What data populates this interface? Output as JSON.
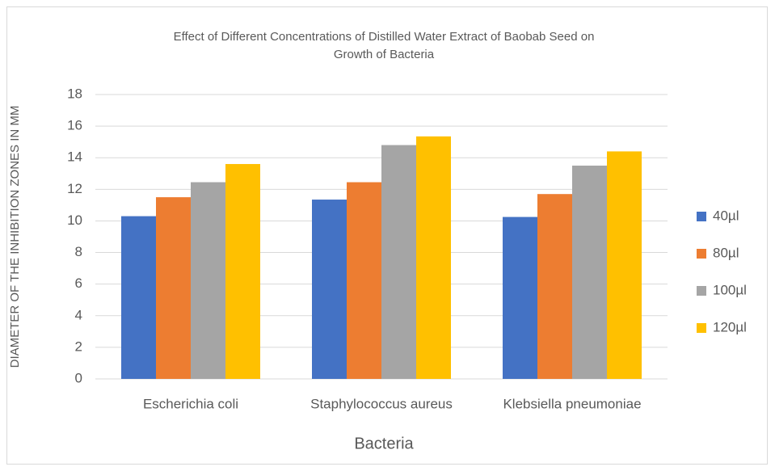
{
  "chart_data": {
    "type": "bar",
    "title": [
      "Effect of Different Concentrations of Distilled Water Extract of  Baobab Seed on",
      "Growth of Bacteria"
    ],
    "x_label": "Bacteria",
    "y_label": "DIAMETER OF THE INHIBITION ZONES IN MM",
    "categories": [
      "Escherichia coli",
      "Staphylococcus aureus",
      "Klebsiella pneumoniae"
    ],
    "series": [
      {
        "name": "40µl",
        "color": "#4472c4",
        "values": [
          10.3,
          11.35,
          10.25
        ]
      },
      {
        "name": "80µl",
        "color": "#ed7d31",
        "values": [
          11.5,
          12.45,
          11.7
        ]
      },
      {
        "name": "100µl",
        "color": "#a5a5a5",
        "values": [
          12.45,
          14.8,
          13.5
        ]
      },
      {
        "name": "120µl",
        "color": "#ffc000",
        "values": [
          13.6,
          15.35,
          14.4
        ]
      }
    ],
    "ylim": [
      0,
      18
    ],
    "yticks": [
      0,
      2,
      4,
      6,
      8,
      10,
      12,
      14,
      16,
      18
    ],
    "grid": true,
    "legend": "right"
  }
}
